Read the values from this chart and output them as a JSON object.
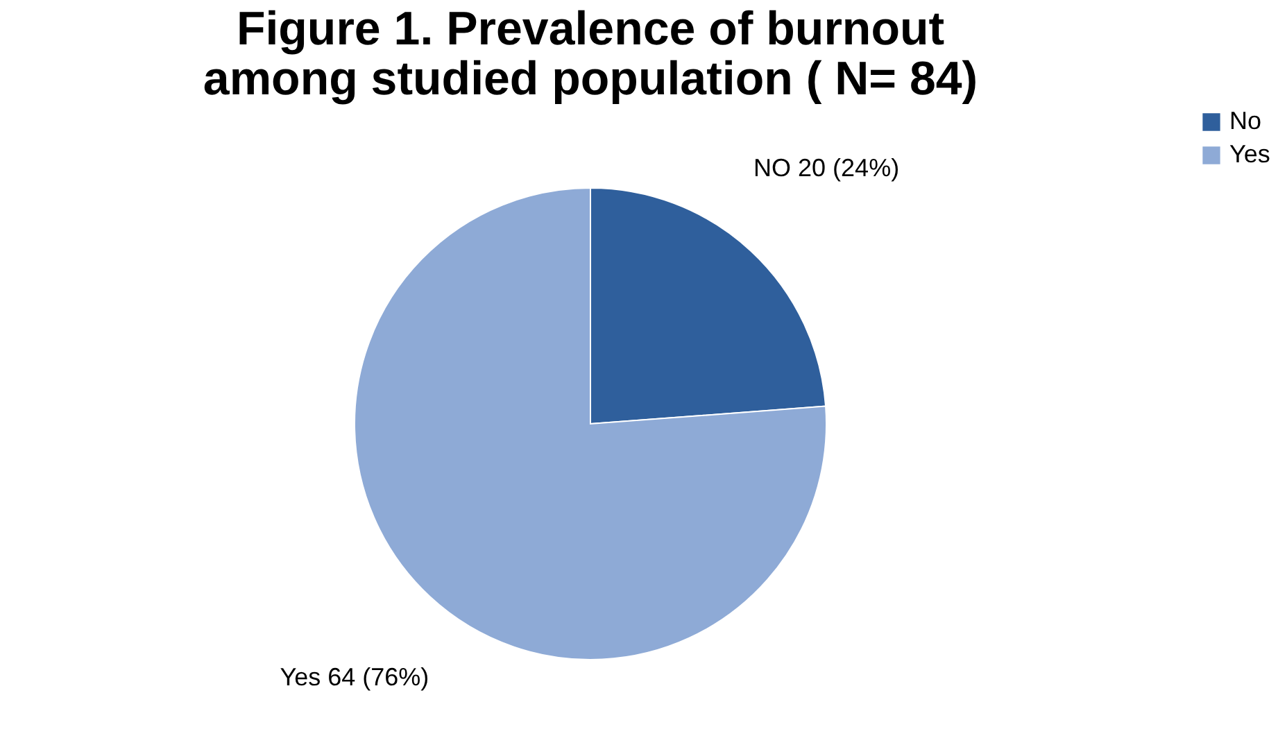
{
  "chart_data": {
    "type": "pie",
    "title": "Figure 1. Prevalence of burnout among studied population ( N= 84)",
    "categories": [
      "No",
      "Yes"
    ],
    "values": [
      20,
      64
    ],
    "colors": [
      "#2f5f9c",
      "#8eaad6"
    ],
    "value_labels": [
      "NO 20 (24%)",
      "Yes 64 (76%)"
    ],
    "legend": "right"
  }
}
